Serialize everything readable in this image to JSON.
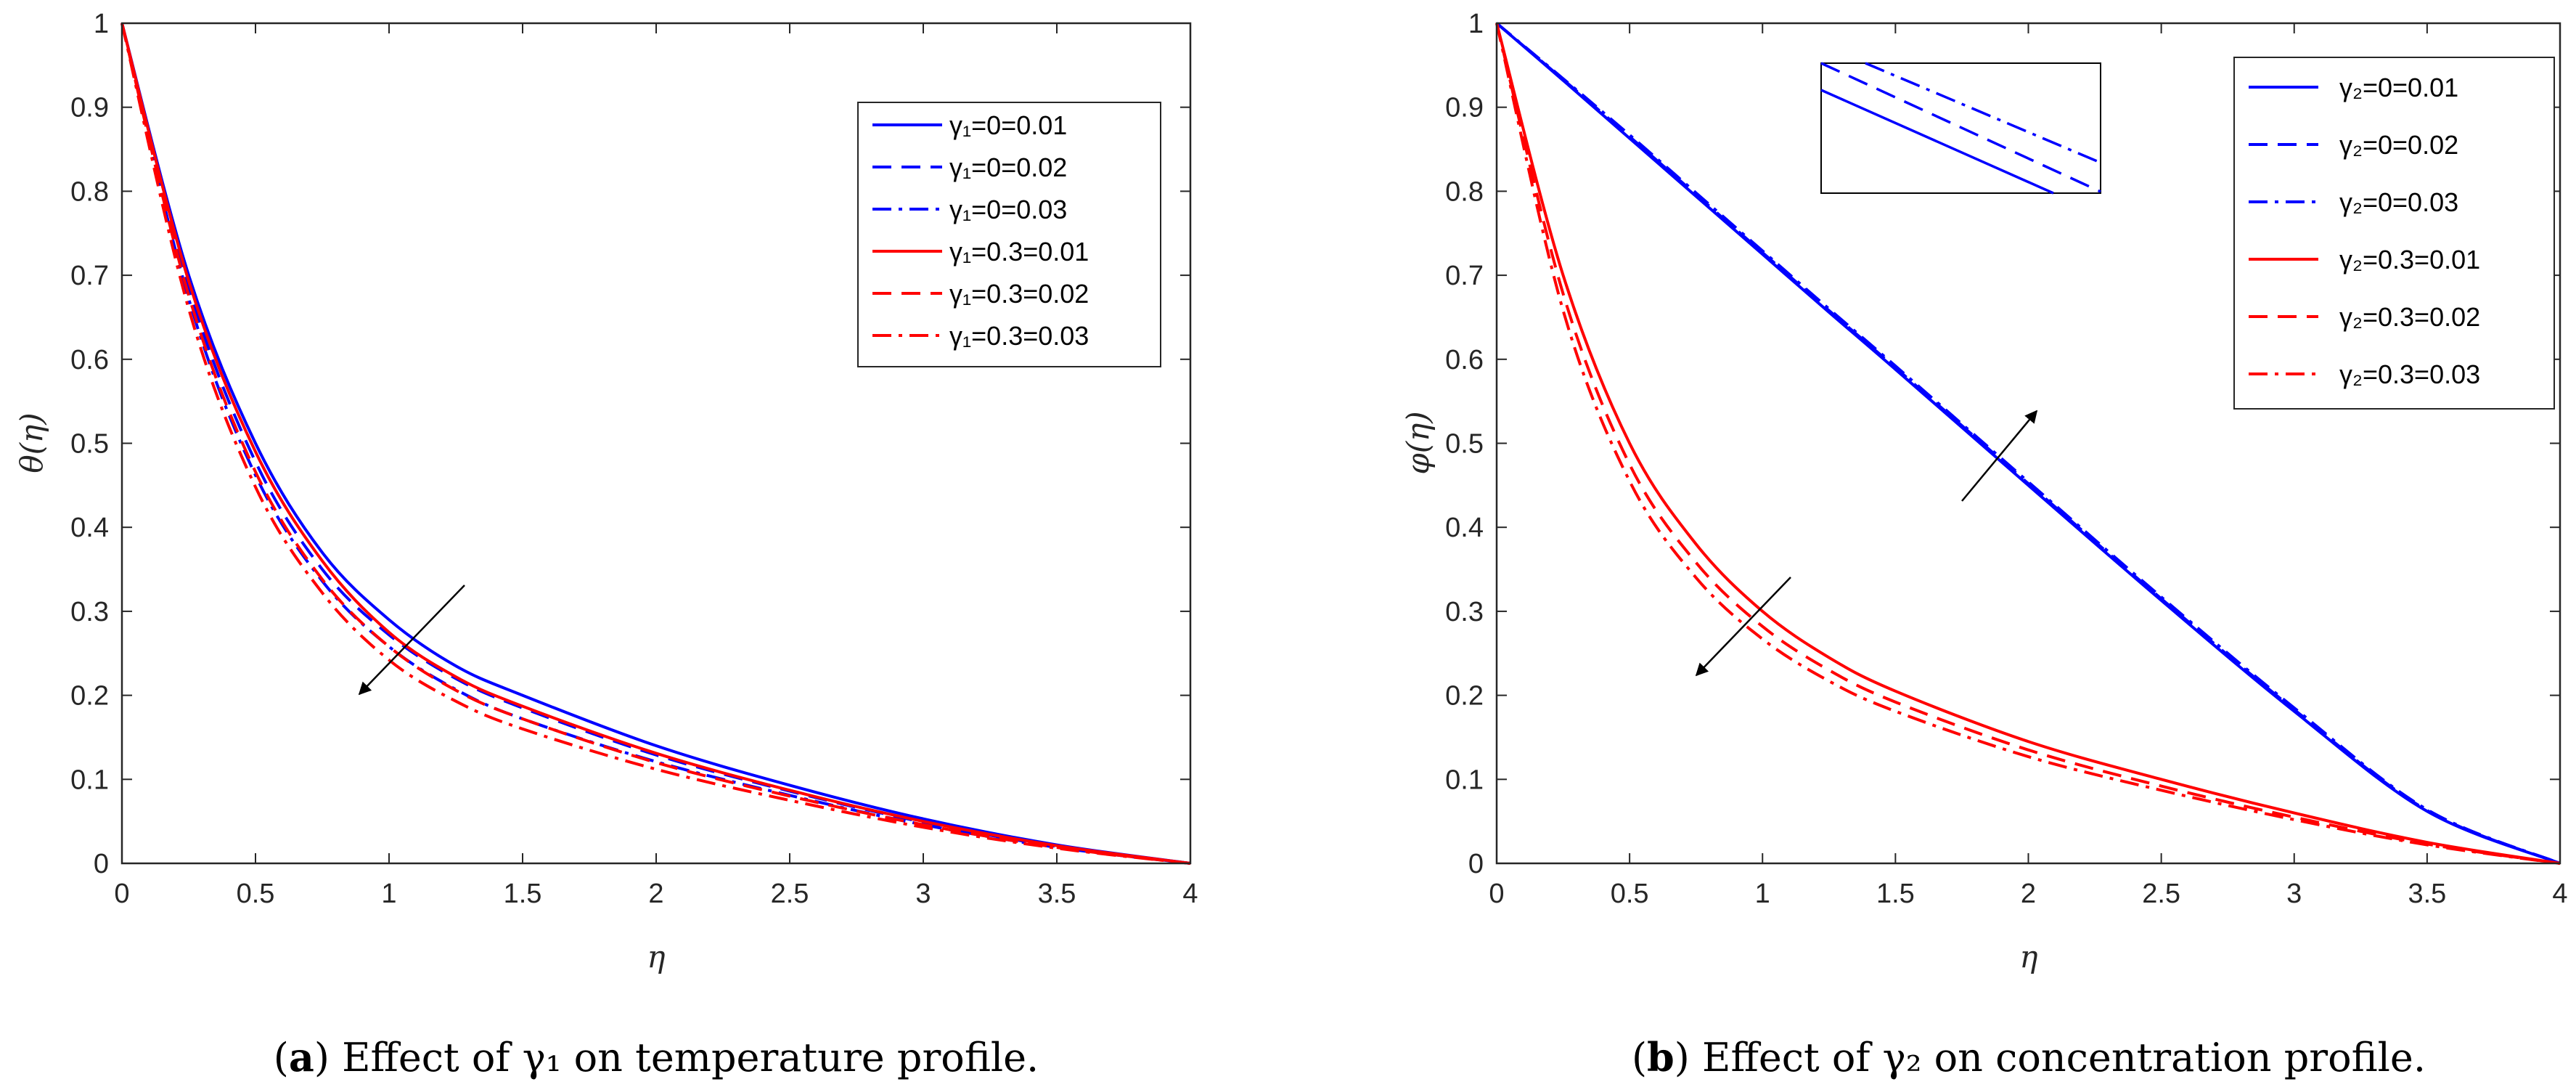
{
  "colors": {
    "blue": "#0000ff",
    "red": "#ff0000",
    "axis": "#262626"
  },
  "chart_data": [
    {
      "type": "line",
      "panel": "a",
      "caption_letter": "a",
      "caption_text": "Effect of γ₁ on temperature profile.",
      "xlabel": "η",
      "ylabel": "θ(η)",
      "xlim": [
        0,
        4
      ],
      "ylim": [
        0,
        1
      ],
      "xticks": [
        "0",
        "0.5",
        "1",
        "1.5",
        "2",
        "2.5",
        "3",
        "3.5",
        "4"
      ],
      "yticks": [
        "0",
        "0.1",
        "0.2",
        "0.3",
        "0.4",
        "0.5",
        "0.6",
        "0.7",
        "0.8",
        "0.9",
        "1"
      ],
      "grid": false,
      "legend_position": "top-right",
      "annotation": "arrow pointing down-left indicating decrease",
      "x": [
        0,
        0.25,
        0.5,
        0.75,
        1,
        1.25,
        1.5,
        2,
        2.5,
        3,
        3.5,
        4
      ],
      "series": [
        {
          "name": "γ₁=0=0.01",
          "color": "blue",
          "style": "solid",
          "values": [
            1,
            0.7,
            0.5,
            0.37,
            0.29,
            0.235,
            0.2,
            0.14,
            0.093,
            0.053,
            0.022,
            0
          ]
        },
        {
          "name": "γ₁=0=0.02",
          "color": "blue",
          "style": "dashed",
          "values": [
            1,
            0.685,
            0.478,
            0.35,
            0.272,
            0.22,
            0.185,
            0.129,
            0.086,
            0.049,
            0.02,
            0
          ]
        },
        {
          "name": "γ₁=0=0.03",
          "color": "blue",
          "style": "dashdot",
          "values": [
            1,
            0.672,
            0.462,
            0.336,
            0.258,
            0.207,
            0.172,
            0.121,
            0.081,
            0.046,
            0.019,
            0
          ]
        },
        {
          "name": "γ₁=0.3=0.01",
          "color": "red",
          "style": "solid",
          "values": [
            1,
            0.693,
            0.49,
            0.36,
            0.275,
            0.222,
            0.187,
            0.131,
            0.087,
            0.05,
            0.021,
            0
          ]
        },
        {
          "name": "γ₁=0.3=0.02",
          "color": "red",
          "style": "dashed",
          "values": [
            1,
            0.676,
            0.466,
            0.338,
            0.258,
            0.206,
            0.172,
            0.12,
            0.08,
            0.046,
            0.019,
            0
          ]
        },
        {
          "name": "γ₁=0.3=0.03",
          "color": "red",
          "style": "dashdot",
          "values": [
            1,
            0.66,
            0.448,
            0.322,
            0.242,
            0.193,
            0.16,
            0.112,
            0.075,
            0.043,
            0.018,
            0
          ]
        }
      ]
    },
    {
      "type": "line",
      "panel": "b",
      "caption_letter": "b",
      "caption_text": "Effect of γ₂ on concentration profile.",
      "xlabel": "η",
      "ylabel": "φ(η)",
      "xlim": [
        0,
        4
      ],
      "ylim": [
        0,
        1
      ],
      "xticks": [
        "0",
        "0.5",
        "1",
        "1.5",
        "2",
        "2.5",
        "3",
        "3.5",
        "4"
      ],
      "yticks": [
        "0",
        "0.1",
        "0.2",
        "0.3",
        "0.4",
        "0.5",
        "0.6",
        "0.7",
        "0.8",
        "0.9",
        "1"
      ],
      "grid": false,
      "legend_position": "top-right",
      "inset": "zoomed view of blue lines, top-center",
      "annotation": "arrow up-right on blue lines, arrow down-left on red lines",
      "x": [
        0,
        0.25,
        0.5,
        0.75,
        1,
        1.25,
        1.5,
        2,
        2.5,
        3,
        3.5,
        4
      ],
      "series": [
        {
          "name": "γ₂=0=0.01",
          "color": "blue",
          "style": "solid",
          "values": [
            1,
            0.932,
            0.863,
            0.794,
            0.725,
            0.656,
            0.588,
            0.45,
            0.313,
            0.181,
            0.062,
            0
          ]
        },
        {
          "name": "γ₂=0=0.02",
          "color": "blue",
          "style": "dashed",
          "values": [
            1,
            0.933,
            0.865,
            0.796,
            0.727,
            0.658,
            0.59,
            0.452,
            0.315,
            0.183,
            0.063,
            0
          ]
        },
        {
          "name": "γ₂=0=0.03",
          "color": "blue",
          "style": "dashdot",
          "values": [
            1,
            0.934,
            0.867,
            0.798,
            0.729,
            0.66,
            0.592,
            0.454,
            0.317,
            0.185,
            0.064,
            0
          ]
        },
        {
          "name": "γ₂=0.3=0.01",
          "color": "red",
          "style": "solid",
          "values": [
            1,
            0.7,
            0.5,
            0.38,
            0.3,
            0.245,
            0.205,
            0.145,
            0.1,
            0.06,
            0.025,
            0
          ]
        },
        {
          "name": "γ₂=0.3=0.02",
          "color": "red",
          "style": "dashed",
          "values": [
            1,
            0.678,
            0.475,
            0.358,
            0.282,
            0.23,
            0.192,
            0.135,
            0.092,
            0.055,
            0.023,
            0
          ]
        },
        {
          "name": "γ₂=0.3=0.03",
          "color": "red",
          "style": "dashdot",
          "values": [
            1,
            0.658,
            0.455,
            0.34,
            0.267,
            0.217,
            0.181,
            0.127,
            0.087,
            0.052,
            0.022,
            0
          ]
        }
      ]
    }
  ]
}
